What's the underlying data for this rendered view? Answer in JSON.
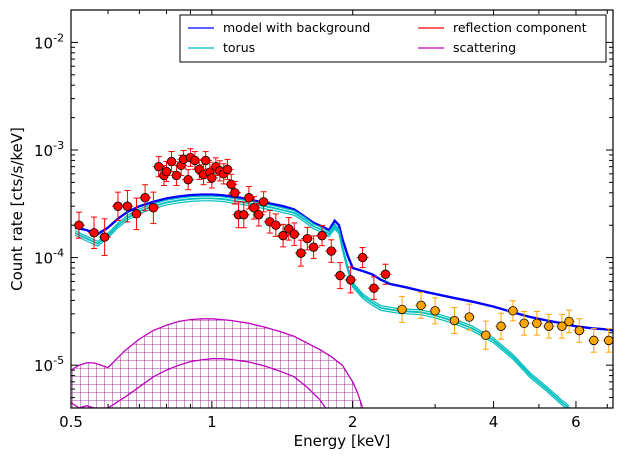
{
  "chart_data": {
    "type": "line",
    "xlabel": "Energy [keV]",
    "ylabel": "Count rate [cts/s/keV]",
    "xscale": "log",
    "yscale": "log",
    "xlim": [
      0.5,
      7.2
    ],
    "ylim": [
      4e-06,
      0.02
    ],
    "xticks": [
      {
        "value": 0.5,
        "label": "0.5"
      },
      {
        "value": 1,
        "label": "1"
      },
      {
        "value": 2,
        "label": "2"
      },
      {
        "value": 4,
        "label": "4"
      },
      {
        "value": 6,
        "label": "6"
      }
    ],
    "yticks": [
      {
        "value": 1e-05,
        "base": "10",
        "exp": "-5"
      },
      {
        "value": 0.0001,
        "base": "10",
        "exp": "-4"
      },
      {
        "value": 0.001,
        "base": "10",
        "exp": "-3"
      },
      {
        "value": 0.01,
        "base": "10",
        "exp": "-2"
      }
    ],
    "legend": {
      "placement": "top-right",
      "columns": 2,
      "entries": [
        {
          "label": "model with background",
          "color": "#0000ff"
        },
        {
          "label": "torus",
          "color": "#00bfbf"
        },
        {
          "label": "reflection component",
          "color": "#ff0000"
        },
        {
          "label": "scattering",
          "color": "#bf00bf"
        }
      ]
    },
    "series": [
      {
        "key": "model",
        "color": "#0000ff",
        "x": [
          0.51,
          0.54,
          0.57,
          0.6,
          0.63,
          0.66,
          0.7,
          0.75,
          0.8,
          0.85,
          0.9,
          0.95,
          1.0,
          1.05,
          1.1,
          1.15,
          1.2,
          1.27,
          1.35,
          1.42,
          1.5,
          1.58,
          1.65,
          1.72,
          1.78,
          1.83,
          1.87,
          1.9,
          1.95,
          2.0,
          2.1,
          2.2,
          2.3,
          2.4,
          2.6,
          2.8,
          3.0,
          3.3,
          3.6,
          4.0,
          4.4,
          4.8,
          5.2,
          5.6,
          6.0,
          6.5,
          7.0,
          7.2
        ],
        "y": [
          0.00019,
          0.00018,
          0.000165,
          0.00019,
          0.00023,
          0.000265,
          0.0003,
          0.00033,
          0.000355,
          0.00037,
          0.00038,
          0.000385,
          0.000385,
          0.00038,
          0.00037,
          0.00036,
          0.000345,
          0.00033,
          0.000315,
          0.0003,
          0.00028,
          0.00024,
          0.00021,
          0.000195,
          0.00018,
          0.00022,
          0.0002,
          0.00015,
          0.000105,
          8e-05,
          7.5e-05,
          7e-05,
          6.2e-05,
          5.7e-05,
          5.3e-05,
          4.9e-05,
          4.6e-05,
          4.2e-05,
          3.9e-05,
          3.5e-05,
          3.1e-05,
          2.8e-05,
          2.6e-05,
          2.45e-05,
          2.3e-05,
          2.2e-05,
          2.15e-05,
          2.1e-05
        ]
      },
      {
        "key": "torus",
        "color": "#00bfbf",
        "x": [
          0.51,
          0.54,
          0.57,
          0.6,
          0.63,
          0.66,
          0.7,
          0.75,
          0.8,
          0.85,
          0.9,
          0.95,
          1.0,
          1.05,
          1.1,
          1.15,
          1.2,
          1.27,
          1.35,
          1.42,
          1.5,
          1.58,
          1.65,
          1.72,
          1.78,
          1.83,
          1.87,
          1.9,
          1.95,
          2.0,
          2.1,
          2.2,
          2.3,
          2.5,
          2.8,
          3.0,
          3.3,
          3.6,
          4.0,
          4.4,
          4.8,
          5.2,
          5.6,
          5.8
        ],
        "y": [
          0.00017,
          0.00015,
          0.000135,
          0.00016,
          0.0002,
          0.000235,
          0.00027,
          0.0003,
          0.000325,
          0.00034,
          0.00035,
          0.000355,
          0.000355,
          0.00035,
          0.00034,
          0.00033,
          0.00032,
          0.000305,
          0.00029,
          0.000275,
          0.00026,
          0.000225,
          0.000195,
          0.00018,
          0.000165,
          0.000195,
          0.000175,
          0.000125,
          8e-05,
          5.6e-05,
          4.4e-05,
          3.8e-05,
          3.4e-05,
          3.2e-05,
          3.1e-05,
          2.9e-05,
          2.55e-05,
          2.2e-05,
          1.7e-05,
          1.2e-05,
          8e-06,
          6e-06,
          4.5e-06,
          4e-06
        ]
      },
      {
        "key": "reflection",
        "color": "#ff0000",
        "x": [],
        "y": []
      },
      {
        "key": "scattering",
        "color": "#bf00bf",
        "x": [
          0.5,
          0.52,
          0.54,
          0.56,
          0.58,
          0.6,
          0.65,
          0.7,
          0.75,
          0.8,
          0.85,
          0.9,
          0.95,
          1.0,
          1.05,
          1.1,
          1.2,
          1.3,
          1.4,
          1.5,
          1.6,
          1.7,
          1.8,
          1.9,
          2.0,
          2.05,
          2.1
        ],
        "y": [
          9e-06,
          1e-05,
          1.05e-05,
          1.05e-05,
          1e-05,
          9.5e-06,
          1.35e-05,
          1.75e-05,
          2.1e-05,
          2.35e-05,
          2.55e-05,
          2.65e-05,
          2.7e-05,
          2.7e-05,
          2.65e-05,
          2.6e-05,
          2.45e-05,
          2.25e-05,
          2.05e-05,
          1.85e-05,
          1.6e-05,
          1.4e-05,
          1.2e-05,
          1e-05,
          7e-06,
          5.5e-06,
          4e-06
        ],
        "lower": {
          "x": [
            0.5,
            0.52,
            0.54,
            0.56,
            0.58,
            0.6,
            0.65,
            0.7,
            0.75,
            0.8,
            0.85,
            0.9,
            0.95,
            1.0,
            1.05,
            1.1,
            1.2,
            1.3,
            1.4,
            1.5,
            1.6,
            1.7,
            1.75
          ],
          "y": [
            4.5e-06,
            4e-06,
            4.2e-06,
            4e-06,
            4e-06,
            4e-06,
            5e-06,
            6.3e-06,
            7.8e-06,
            9e-06,
            1e-05,
            1.08e-05,
            1.12e-05,
            1.15e-05,
            1.15e-05,
            1.13e-05,
            1.07e-05,
            9.8e-06,
            8.8e-06,
            7.8e-06,
            6.2e-06,
            4.8e-06,
            4e-06
          ]
        }
      }
    ],
    "data_points": [
      {
        "x": 0.52,
        "y": 0.0002,
        "err": 0.2
      },
      {
        "x": 0.56,
        "y": 0.00017,
        "err": 0.25
      },
      {
        "x": 0.59,
        "y": 0.000155,
        "err": 0.3
      },
      {
        "x": 0.63,
        "y": 0.0003,
        "err": 0.22
      },
      {
        "x": 0.66,
        "y": 0.0003,
        "err": 0.25
      },
      {
        "x": 0.69,
        "y": 0.000255,
        "err": 0.25
      },
      {
        "x": 0.72,
        "y": 0.00036,
        "err": 0.2
      },
      {
        "x": 0.75,
        "y": 0.00029,
        "err": 0.25
      },
      {
        "x": 0.77,
        "y": 0.0007,
        "err": 0.15
      },
      {
        "x": 0.79,
        "y": 0.00058,
        "err": 0.15
      },
      {
        "x": 0.8,
        "y": 0.00063,
        "err": 0.15
      },
      {
        "x": 0.82,
        "y": 0.00078,
        "err": 0.15
      },
      {
        "x": 0.84,
        "y": 0.00058,
        "err": 0.15
      },
      {
        "x": 0.86,
        "y": 0.00072,
        "err": 0.15
      },
      {
        "x": 0.87,
        "y": 0.00082,
        "err": 0.13
      },
      {
        "x": 0.89,
        "y": 0.00053,
        "err": 0.15
      },
      {
        "x": 0.9,
        "y": 0.00085,
        "err": 0.13
      },
      {
        "x": 0.92,
        "y": 0.0008,
        "err": 0.13
      },
      {
        "x": 0.94,
        "y": 0.00066,
        "err": 0.15
      },
      {
        "x": 0.96,
        "y": 0.00059,
        "err": 0.15
      },
      {
        "x": 0.97,
        "y": 0.0008,
        "err": 0.13
      },
      {
        "x": 0.99,
        "y": 0.00062,
        "err": 0.15
      },
      {
        "x": 1.0,
        "y": 0.00055,
        "err": 0.15
      },
      {
        "x": 1.02,
        "y": 0.0007,
        "err": 0.13
      },
      {
        "x": 1.04,
        "y": 0.00064,
        "err": 0.15
      },
      {
        "x": 1.06,
        "y": 0.0006,
        "err": 0.15
      },
      {
        "x": 1.08,
        "y": 0.00066,
        "err": 0.15
      },
      {
        "x": 1.1,
        "y": 0.00048,
        "err": 0.15
      },
      {
        "x": 1.12,
        "y": 0.0004,
        "err": 0.17
      },
      {
        "x": 1.14,
        "y": 0.00025,
        "err": 0.2
      },
      {
        "x": 1.17,
        "y": 0.00025,
        "err": 0.2
      },
      {
        "x": 1.2,
        "y": 0.00036,
        "err": 0.17
      },
      {
        "x": 1.23,
        "y": 0.00029,
        "err": 0.17
      },
      {
        "x": 1.26,
        "y": 0.00025,
        "err": 0.17
      },
      {
        "x": 1.29,
        "y": 0.00033,
        "err": 0.15
      },
      {
        "x": 1.33,
        "y": 0.000215,
        "err": 0.17
      },
      {
        "x": 1.37,
        "y": 0.0002,
        "err": 0.17
      },
      {
        "x": 1.42,
        "y": 0.00016,
        "err": 0.17
      },
      {
        "x": 1.46,
        "y": 0.000185,
        "err": 0.17
      },
      {
        "x": 1.5,
        "y": 0.000165,
        "err": 0.17
      },
      {
        "x": 1.55,
        "y": 0.00011,
        "err": 0.2
      },
      {
        "x": 1.6,
        "y": 0.00015,
        "err": 0.17
      },
      {
        "x": 1.65,
        "y": 0.000125,
        "err": 0.17
      },
      {
        "x": 1.72,
        "y": 0.00016,
        "err": 0.15
      },
      {
        "x": 1.8,
        "y": 0.000115,
        "err": 0.17
      },
      {
        "x": 1.88,
        "y": 6.8e-05,
        "err": 0.2
      },
      {
        "x": 1.98,
        "y": 6.2e-05,
        "err": 0.2
      },
      {
        "x": 2.1,
        "y": 0.0001,
        "err": 0.15
      },
      {
        "x": 2.22,
        "y": 5.2e-05,
        "err": 0.17
      },
      {
        "x": 2.35,
        "y": 7e-05,
        "err": 0.15
      },
      {
        "x": 2.55,
        "y": 3.3e-05,
        "err": 0.2,
        "hi": true
      },
      {
        "x": 2.8,
        "y": 3.6e-05,
        "err": 0.2,
        "hi": true
      },
      {
        "x": 3.0,
        "y": 3.2e-05,
        "err": 0.2,
        "hi": true
      },
      {
        "x": 3.3,
        "y": 2.6e-05,
        "err": 0.2,
        "hi": true
      },
      {
        "x": 3.55,
        "y": 2.8e-05,
        "err": 0.2,
        "hi": true
      },
      {
        "x": 3.85,
        "y": 1.9e-05,
        "err": 0.22,
        "hi": true
      },
      {
        "x": 4.15,
        "y": 2.3e-05,
        "err": 0.2,
        "hi": true
      },
      {
        "x": 4.4,
        "y": 3.2e-05,
        "err": 0.15,
        "hi": true
      },
      {
        "x": 4.65,
        "y": 2.45e-05,
        "err": 0.18,
        "hi": true
      },
      {
        "x": 4.95,
        "y": 2.45e-05,
        "err": 0.18,
        "hi": true
      },
      {
        "x": 5.25,
        "y": 2.3e-05,
        "err": 0.18,
        "hi": true
      },
      {
        "x": 5.6,
        "y": 2.3e-05,
        "err": 0.18,
        "hi": true
      },
      {
        "x": 5.8,
        "y": 2.55e-05,
        "err": 0.17,
        "hi": true
      },
      {
        "x": 6.1,
        "y": 2.1e-05,
        "err": 0.18,
        "hi": true
      },
      {
        "x": 6.55,
        "y": 1.7e-05,
        "err": 0.18,
        "hi": true
      },
      {
        "x": 7.05,
        "y": 1.7e-05,
        "err": 0.18,
        "hi": true
      }
    ],
    "point_colors": {
      "main": "#ff0000",
      "high": "#ffa500",
      "errbar_main": "#ff0000",
      "errbar_high": "#ffa500"
    },
    "grid": false
  }
}
